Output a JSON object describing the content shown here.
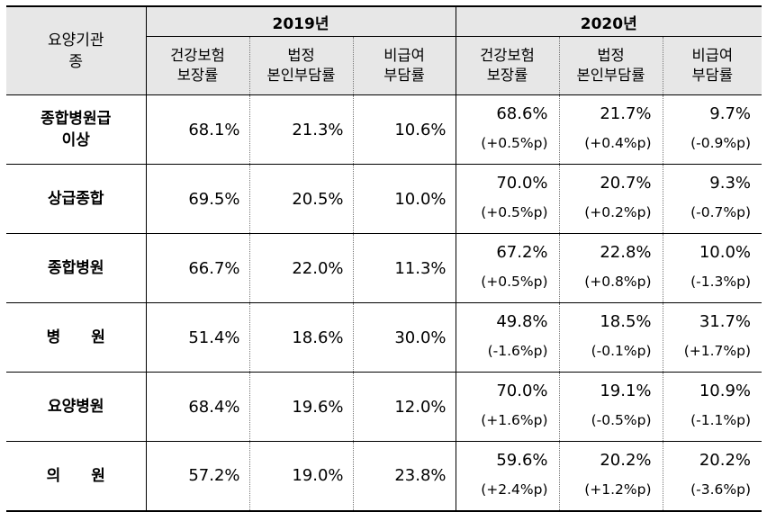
{
  "header": {
    "category_line1": "요양기관",
    "category_line2": "종",
    "year_2019": "2019년",
    "year_2020": "2020년",
    "columns": [
      {
        "line1": "건강보험",
        "line2": "보장률"
      },
      {
        "line1": "법정",
        "line2": "본인부담률"
      },
      {
        "line1": "비급여",
        "line2": "부담률"
      }
    ]
  },
  "rows": [
    {
      "label_line1": "종합병원급",
      "label_line2": "이상",
      "y2019": [
        "68.1%",
        "21.3%",
        "10.6%"
      ],
      "y2020": [
        "68.6%",
        "21.7%",
        "9.7%"
      ],
      "diff": [
        "(+0.5%p)",
        "(+0.4%p)",
        "(-0.9%p)"
      ]
    },
    {
      "label_line1": "상급종합",
      "label_line2": "",
      "y2019": [
        "69.5%",
        "20.5%",
        "10.0%"
      ],
      "y2020": [
        "70.0%",
        "20.7%",
        "9.3%"
      ],
      "diff": [
        "(+0.5%p)",
        "(+0.2%p)",
        "(-0.7%p)"
      ]
    },
    {
      "label_line1": "종합병원",
      "label_line2": "",
      "y2019": [
        "66.7%",
        "22.0%",
        "11.3%"
      ],
      "y2020": [
        "67.2%",
        "22.8%",
        "10.0%"
      ],
      "diff": [
        "(+0.5%p)",
        "(+0.8%p)",
        "(-1.3%p)"
      ]
    },
    {
      "label_line1": "병　　원",
      "label_line2": "",
      "y2019": [
        "51.4%",
        "18.6%",
        "30.0%"
      ],
      "y2020": [
        "49.8%",
        "18.5%",
        "31.7%"
      ],
      "diff": [
        "(-1.6%p)",
        "(-0.1%p)",
        "(+1.7%p)"
      ]
    },
    {
      "label_line1": "요양병원",
      "label_line2": "",
      "y2019": [
        "68.4%",
        "19.6%",
        "12.0%"
      ],
      "y2020": [
        "70.0%",
        "19.1%",
        "10.9%"
      ],
      "diff": [
        "(+1.6%p)",
        "(-0.5%p)",
        "(-1.1%p)"
      ]
    },
    {
      "label_line1": "의　　원",
      "label_line2": "",
      "y2019": [
        "57.2%",
        "19.0%",
        "23.8%"
      ],
      "y2020": [
        "59.6%",
        "20.2%",
        "20.2%"
      ],
      "diff": [
        "(+2.4%p)",
        "(+1.2%p)",
        "(-3.6%p)"
      ]
    }
  ]
}
